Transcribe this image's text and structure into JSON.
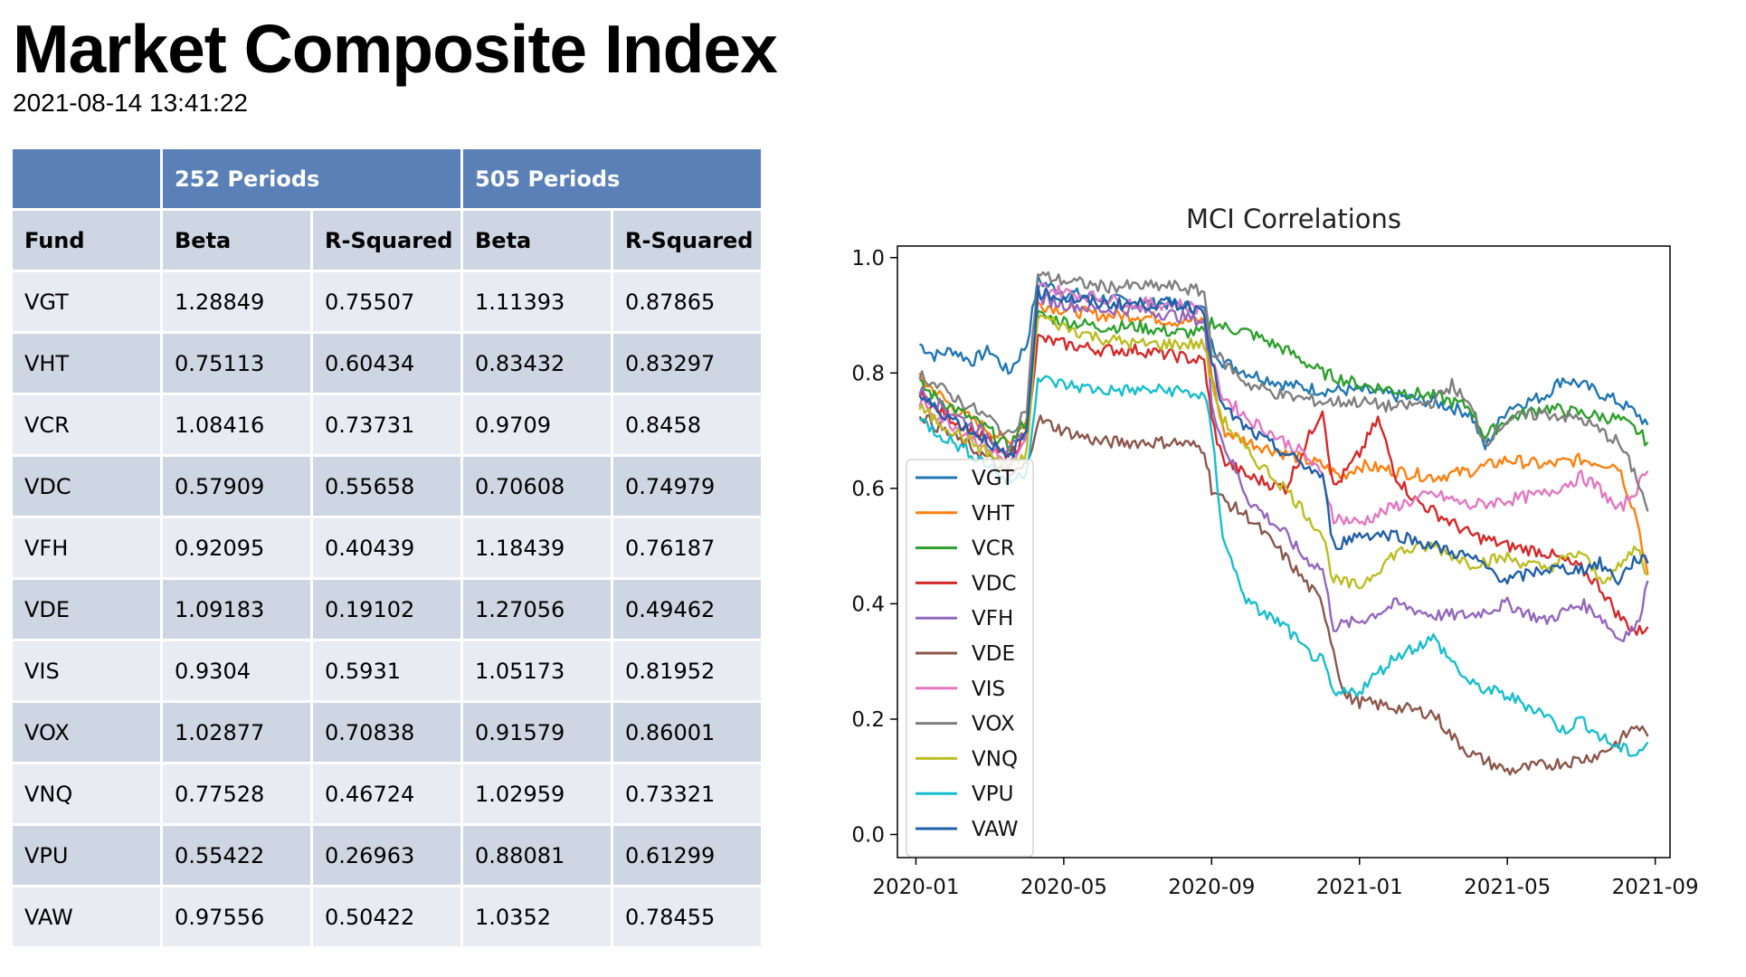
{
  "page": {
    "title": "Market Composite Index",
    "timestamp": "2021-08-14 13:41:22"
  },
  "table": {
    "group_headers": [
      "252 Periods",
      "505 Periods"
    ],
    "columns": [
      "Fund",
      "Beta",
      "R-Squared",
      "Beta",
      "R-Squared"
    ],
    "rows": [
      [
        "VGT",
        "1.28849",
        "0.75507",
        "1.11393",
        "0.87865"
      ],
      [
        "VHT",
        "0.75113",
        "0.60434",
        "0.83432",
        "0.83297"
      ],
      [
        "VCR",
        "1.08416",
        "0.73731",
        "0.9709",
        "0.8458"
      ],
      [
        "VDC",
        "0.57909",
        "0.55658",
        "0.70608",
        "0.74979"
      ],
      [
        "VFH",
        "0.92095",
        "0.40439",
        "1.18439",
        "0.76187"
      ],
      [
        "VDE",
        "1.09183",
        "0.19102",
        "1.27056",
        "0.49462"
      ],
      [
        "VIS",
        "0.9304",
        "0.5931",
        "1.05173",
        "0.81952"
      ],
      [
        "VOX",
        "1.02877",
        "0.70838",
        "0.91579",
        "0.86001"
      ],
      [
        "VNQ",
        "0.77528",
        "0.46724",
        "1.02959",
        "0.73321"
      ],
      [
        "VPU",
        "0.55422",
        "0.26963",
        "0.88081",
        "0.61299"
      ],
      [
        "VAW",
        "0.97556",
        "0.50422",
        "1.0352",
        "0.78455"
      ]
    ]
  },
  "chart_data": {
    "type": "line",
    "title": "MCI Correlations",
    "xlabel": "",
    "ylabel": "",
    "ylim": [
      -0.04,
      1.02
    ],
    "xlim_months": [
      -0.5,
      20.4
    ],
    "month_origin": "2020-01",
    "yticks": [
      0.0,
      0.2,
      0.4,
      0.6,
      0.8,
      1.0
    ],
    "ytick_labels": [
      "0.0",
      "0.2",
      "0.4",
      "0.6",
      "0.8",
      "1.0"
    ],
    "xticks_months": [
      0,
      4,
      8,
      12,
      16,
      20
    ],
    "xtick_labels": [
      "2020-01",
      "2020-05",
      "2020-09",
      "2021-01",
      "2021-05",
      "2021-09"
    ],
    "legend_position": "center-left",
    "series": [
      {
        "name": "VGT",
        "color": "#1f77b4",
        "x": [
          0.1,
          0.5,
          1.0,
          1.5,
          2.0,
          2.5,
          3.0,
          3.3,
          4.0,
          5.0,
          6.0,
          7.0,
          7.8,
          8.0,
          8.3,
          9.0,
          10.0,
          11.0,
          12.0,
          13.0,
          14.0,
          15.0,
          15.4,
          16.0,
          17.0,
          17.5,
          18.0,
          19.0,
          19.5,
          19.8
        ],
        "values": [
          0.85,
          0.83,
          0.84,
          0.82,
          0.84,
          0.8,
          0.85,
          0.96,
          0.94,
          0.93,
          0.92,
          0.92,
          0.91,
          0.85,
          0.82,
          0.8,
          0.78,
          0.77,
          0.77,
          0.76,
          0.75,
          0.73,
          0.67,
          0.74,
          0.76,
          0.79,
          0.78,
          0.75,
          0.73,
          0.71
        ]
      },
      {
        "name": "VHT",
        "color": "#ff7f0e",
        "x": [
          0.1,
          0.5,
          1.0,
          1.5,
          2.0,
          2.5,
          3.0,
          3.3,
          4.0,
          5.0,
          6.0,
          7.0,
          7.8,
          8.0,
          8.3,
          9.0,
          10.0,
          11.0,
          11.5,
          12.0,
          13.0,
          14.0,
          15.0,
          16.0,
          17.0,
          18.0,
          19.0,
          19.5,
          19.8
        ],
        "values": [
          0.79,
          0.77,
          0.74,
          0.72,
          0.7,
          0.68,
          0.72,
          0.92,
          0.91,
          0.9,
          0.9,
          0.89,
          0.89,
          0.8,
          0.7,
          0.68,
          0.66,
          0.64,
          0.62,
          0.64,
          0.63,
          0.62,
          0.63,
          0.65,
          0.64,
          0.65,
          0.64,
          0.55,
          0.45
        ]
      },
      {
        "name": "VCR",
        "color": "#2ca02c",
        "x": [
          0.1,
          0.5,
          1.0,
          1.5,
          2.0,
          2.5,
          3.0,
          3.3,
          4.0,
          5.0,
          6.0,
          7.0,
          7.8,
          8.0,
          8.3,
          9.0,
          10.0,
          11.0,
          12.0,
          13.0,
          14.0,
          15.0,
          15.4,
          16.0,
          17.0,
          18.0,
          19.0,
          19.5,
          19.8
        ],
        "values": [
          0.78,
          0.76,
          0.74,
          0.72,
          0.7,
          0.67,
          0.72,
          0.9,
          0.89,
          0.88,
          0.88,
          0.87,
          0.87,
          0.89,
          0.88,
          0.87,
          0.84,
          0.8,
          0.78,
          0.77,
          0.76,
          0.74,
          0.69,
          0.72,
          0.74,
          0.73,
          0.72,
          0.7,
          0.68
        ]
      },
      {
        "name": "VDC",
        "color": "#d62728",
        "x": [
          0.1,
          0.5,
          1.0,
          1.5,
          2.0,
          2.5,
          3.0,
          3.3,
          4.0,
          5.0,
          6.0,
          7.0,
          7.8,
          8.0,
          8.3,
          9.0,
          10.0,
          11.0,
          11.3,
          12.0,
          12.5,
          13.0,
          13.5,
          14.0,
          15.0,
          16.0,
          17.0,
          18.0,
          18.5,
          19.0,
          19.5,
          19.8
        ],
        "values": [
          0.76,
          0.74,
          0.72,
          0.7,
          0.68,
          0.65,
          0.7,
          0.86,
          0.85,
          0.84,
          0.84,
          0.83,
          0.82,
          0.72,
          0.65,
          0.62,
          0.6,
          0.74,
          0.6,
          0.66,
          0.72,
          0.62,
          0.58,
          0.56,
          0.52,
          0.5,
          0.49,
          0.46,
          0.43,
          0.38,
          0.35,
          0.36
        ]
      },
      {
        "name": "VFH",
        "color": "#9467bd",
        "x": [
          0.1,
          0.5,
          1.0,
          1.5,
          2.0,
          2.5,
          3.0,
          3.3,
          4.0,
          5.0,
          6.0,
          7.0,
          7.8,
          8.0,
          8.3,
          9.0,
          10.0,
          10.5,
          11.0,
          11.3,
          12.0,
          13.0,
          14.0,
          15.0,
          16.0,
          17.0,
          18.0,
          18.5,
          19.0,
          19.5,
          19.8
        ],
        "values": [
          0.77,
          0.75,
          0.73,
          0.71,
          0.69,
          0.66,
          0.7,
          0.93,
          0.92,
          0.91,
          0.91,
          0.9,
          0.89,
          0.75,
          0.68,
          0.58,
          0.52,
          0.48,
          0.46,
          0.36,
          0.37,
          0.4,
          0.38,
          0.38,
          0.4,
          0.37,
          0.4,
          0.38,
          0.34,
          0.36,
          0.44
        ]
      },
      {
        "name": "VDE",
        "color": "#8c564b",
        "x": [
          0.1,
          0.5,
          1.0,
          1.5,
          2.0,
          2.5,
          3.0,
          3.3,
          4.0,
          5.0,
          6.0,
          7.0,
          7.8,
          8.0,
          8.3,
          9.0,
          10.0,
          10.5,
          11.0,
          11.3,
          11.6,
          12.0,
          13.0,
          14.0,
          14.5,
          15.0,
          16.0,
          17.0,
          18.0,
          18.5,
          19.0,
          19.5,
          19.8
        ],
        "values": [
          0.73,
          0.71,
          0.69,
          0.67,
          0.65,
          0.62,
          0.64,
          0.72,
          0.7,
          0.68,
          0.68,
          0.68,
          0.67,
          0.6,
          0.58,
          0.55,
          0.48,
          0.44,
          0.4,
          0.32,
          0.24,
          0.23,
          0.22,
          0.21,
          0.17,
          0.14,
          0.11,
          0.12,
          0.13,
          0.14,
          0.16,
          0.19,
          0.17
        ]
      },
      {
        "name": "VIS",
        "color": "#e377c2",
        "x": [
          0.1,
          0.5,
          1.0,
          1.5,
          2.0,
          2.5,
          3.0,
          3.3,
          4.0,
          5.0,
          6.0,
          7.0,
          7.8,
          8.0,
          8.3,
          9.0,
          10.0,
          10.5,
          11.0,
          11.3,
          12.0,
          13.0,
          14.0,
          15.0,
          16.0,
          17.0,
          18.0,
          18.5,
          19.0,
          19.5,
          19.8
        ],
        "values": [
          0.75,
          0.73,
          0.71,
          0.69,
          0.67,
          0.64,
          0.68,
          0.95,
          0.94,
          0.93,
          0.92,
          0.92,
          0.91,
          0.82,
          0.76,
          0.72,
          0.68,
          0.66,
          0.62,
          0.55,
          0.54,
          0.57,
          0.59,
          0.57,
          0.58,
          0.59,
          0.62,
          0.6,
          0.56,
          0.6,
          0.63
        ]
      },
      {
        "name": "VOX",
        "color": "#7f7f7f",
        "x": [
          0.1,
          0.5,
          1.0,
          1.5,
          2.0,
          2.5,
          3.0,
          3.3,
          4.0,
          5.0,
          6.0,
          7.0,
          7.8,
          8.0,
          8.3,
          9.0,
          10.0,
          11.0,
          12.0,
          13.0,
          14.0,
          14.5,
          15.0,
          15.4,
          16.0,
          17.0,
          18.0,
          19.0,
          19.5,
          19.8
        ],
        "values": [
          0.8,
          0.78,
          0.76,
          0.74,
          0.72,
          0.69,
          0.74,
          0.97,
          0.96,
          0.95,
          0.95,
          0.95,
          0.94,
          0.84,
          0.82,
          0.78,
          0.76,
          0.75,
          0.75,
          0.74,
          0.75,
          0.78,
          0.74,
          0.68,
          0.72,
          0.73,
          0.72,
          0.68,
          0.62,
          0.56
        ]
      },
      {
        "name": "VNQ",
        "color": "#bcbd22",
        "x": [
          0.1,
          0.5,
          1.0,
          1.5,
          2.0,
          2.5,
          3.0,
          3.3,
          4.0,
          5.0,
          6.0,
          7.0,
          7.8,
          8.0,
          8.3,
          9.0,
          10.0,
          10.5,
          11.0,
          11.3,
          12.0,
          13.0,
          14.0,
          15.0,
          16.0,
          17.0,
          18.0,
          18.5,
          19.0,
          19.5,
          19.8
        ],
        "values": [
          0.74,
          0.72,
          0.7,
          0.68,
          0.66,
          0.63,
          0.66,
          0.9,
          0.88,
          0.86,
          0.85,
          0.85,
          0.85,
          0.78,
          0.72,
          0.66,
          0.6,
          0.56,
          0.52,
          0.44,
          0.43,
          0.49,
          0.5,
          0.47,
          0.48,
          0.46,
          0.49,
          0.44,
          0.46,
          0.5,
          0.45
        ]
      },
      {
        "name": "VPU",
        "color": "#17becf",
        "x": [
          0.1,
          0.5,
          1.0,
          1.5,
          2.0,
          2.5,
          3.0,
          3.3,
          4.0,
          5.0,
          6.0,
          7.0,
          7.8,
          8.0,
          8.3,
          8.6,
          9.0,
          10.0,
          10.5,
          11.0,
          11.3,
          12.0,
          13.0,
          14.0,
          14.5,
          15.0,
          16.0,
          17.0,
          17.5,
          18.0,
          18.5,
          19.0,
          19.5,
          19.8
        ],
        "values": [
          0.72,
          0.7,
          0.68,
          0.66,
          0.64,
          0.61,
          0.63,
          0.79,
          0.78,
          0.77,
          0.77,
          0.77,
          0.76,
          0.7,
          0.52,
          0.46,
          0.4,
          0.36,
          0.32,
          0.3,
          0.24,
          0.25,
          0.31,
          0.34,
          0.3,
          0.26,
          0.24,
          0.21,
          0.18,
          0.2,
          0.17,
          0.15,
          0.14,
          0.16
        ]
      },
      {
        "name": "VAW",
        "color": "#1f5fa8",
        "x": [
          0.1,
          0.5,
          1.0,
          1.5,
          2.0,
          2.5,
          3.0,
          3.3,
          4.0,
          5.0,
          6.0,
          7.0,
          7.8,
          8.0,
          8.3,
          9.0,
          10.0,
          10.5,
          11.0,
          11.3,
          12.0,
          13.0,
          14.0,
          15.0,
          16.0,
          17.0,
          18.0,
          18.5,
          19.0,
          19.5,
          19.8
        ],
        "values": [
          0.76,
          0.74,
          0.72,
          0.7,
          0.68,
          0.65,
          0.7,
          0.94,
          0.93,
          0.92,
          0.92,
          0.92,
          0.91,
          0.82,
          0.74,
          0.7,
          0.66,
          0.64,
          0.62,
          0.5,
          0.52,
          0.52,
          0.5,
          0.48,
          0.44,
          0.46,
          0.46,
          0.47,
          0.44,
          0.48,
          0.47
        ]
      }
    ]
  }
}
